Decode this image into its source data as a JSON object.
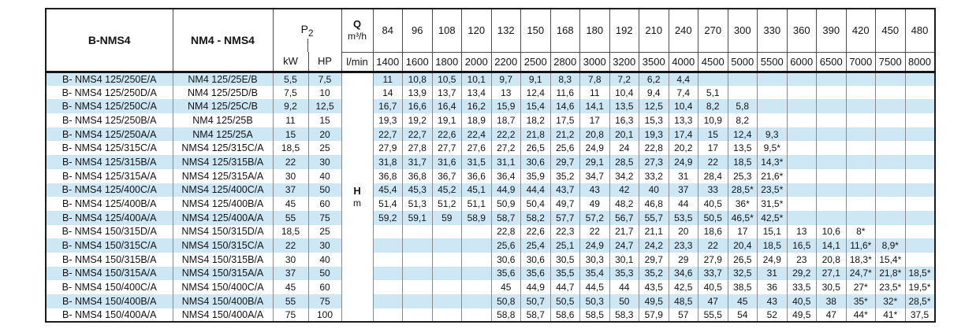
{
  "colors": {
    "stripe_blue": "#cde7f5",
    "border_outer": "#1c1c1c",
    "border_inner": "#8a8a8a"
  },
  "table": {
    "header": {
      "model_b": "B-NMS4",
      "model_nm": "NM4 - NMS4",
      "p2": {
        "base": "P",
        "sub": "2"
      },
      "kw": "kW",
      "hp": "HP",
      "q": {
        "symbol": "Q",
        "unit": "m³/h"
      },
      "lmin": "l/min",
      "flow_m3h": [
        "84",
        "96",
        "108",
        "120",
        "132",
        "150",
        "168",
        "180",
        "192",
        "210",
        "240",
        "270",
        "300",
        "330",
        "360",
        "390",
        "420",
        "450",
        "480"
      ],
      "flow_lmin": [
        "1400",
        "1600",
        "1800",
        "2000",
        "2200",
        "2500",
        "2800",
        "3000",
        "3200",
        "3500",
        "4000",
        "4500",
        "5000",
        "5500",
        "6000",
        "6500",
        "7000",
        "7500",
        "8000"
      ]
    },
    "head_unit": {
      "h": "H",
      "m": "m"
    },
    "rows": [
      {
        "model_b": "B- NMS4 125/250E/A",
        "model_nm": "NM4 125/25E/B",
        "kw": "5,5",
        "hp": "7,5",
        "values": [
          "11",
          "10,8",
          "10,5",
          "10,1",
          "9,7",
          "9,1",
          "8,3",
          "7,8",
          "7,2",
          "6,2",
          "4,4",
          "",
          "",
          "",
          "",
          "",
          "",
          "",
          ""
        ]
      },
      {
        "model_b": "B- NMS4 125/250D/A",
        "model_nm": "NM4 125/25D/B",
        "kw": "7,5",
        "hp": "10",
        "values": [
          "14",
          "13,9",
          "13,7",
          "13,4",
          "13",
          "12,4",
          "11,6",
          "11",
          "10,4",
          "9,4",
          "7,4",
          "5,1",
          "",
          "",
          "",
          "",
          "",
          "",
          ""
        ]
      },
      {
        "model_b": "B- NMS4 125/250C/A",
        "model_nm": "NM4 125/25C/B",
        "kw": "9,2",
        "hp": "12,5",
        "values": [
          "16,7",
          "16,6",
          "16,4",
          "16,2",
          "15,9",
          "15,4",
          "14,6",
          "14,1",
          "13,5",
          "12,5",
          "10,4",
          "8,2",
          "5,8",
          "",
          "",
          "",
          "",
          "",
          ""
        ]
      },
      {
        "model_b": "B- NMS4 125/250B/A",
        "model_nm": "NM4 125/25B",
        "kw": "11",
        "hp": "15",
        "values": [
          "19,3",
          "19,2",
          "19,1",
          "18,9",
          "18,7",
          "18,2",
          "17,5",
          "17",
          "16,3",
          "15,3",
          "13,3",
          "10,9",
          "8,2",
          "",
          "",
          "",
          "",
          "",
          ""
        ]
      },
      {
        "model_b": "B- NMS4 125/250A/A",
        "model_nm": "NM4 125/25A",
        "kw": "15",
        "hp": "20",
        "values": [
          "22,7",
          "22,7",
          "22,6",
          "22,4",
          "22,2",
          "21,8",
          "21,2",
          "20,8",
          "20,1",
          "19,3",
          "17,4",
          "15",
          "12,4",
          "9,3",
          "",
          "",
          "",
          "",
          ""
        ]
      },
      {
        "model_b": "B- NMS4 125/315C/A",
        "model_nm": "NMS4 125/315C/A",
        "kw": "18,5",
        "hp": "25",
        "values": [
          "27,9",
          "27,8",
          "27,7",
          "27,6",
          "27,2",
          "26,5",
          "25,6",
          "24,9",
          "24",
          "22,8",
          "20,2",
          "17",
          "13,5",
          "9,5*",
          "",
          "",
          "",
          "",
          ""
        ]
      },
      {
        "model_b": "B- NMS4 125/315B/A",
        "model_nm": "NMS4 125/315B/A",
        "kw": "22",
        "hp": "30",
        "values": [
          "31,8",
          "31,7",
          "31,6",
          "31,5",
          "31,1",
          "30,6",
          "29,7",
          "29,1",
          "28,5",
          "27,3",
          "24,9",
          "22",
          "18,5",
          "14,3*",
          "",
          "",
          "",
          "",
          ""
        ]
      },
      {
        "model_b": "B- NMS4 125/315A/A",
        "model_nm": "NMS4 125/315A/A",
        "kw": "30",
        "hp": "40",
        "values": [
          "36,8",
          "36,8",
          "36,7",
          "36,6",
          "36,4",
          "35,9",
          "35,2",
          "34,7",
          "34,2",
          "33,2",
          "31",
          "28,4",
          "25,3",
          "21,6*",
          "",
          "",
          "",
          "",
          ""
        ]
      },
      {
        "model_b": "B- NMS4 125/400C/A",
        "model_nm": "NMS4 125/400C/A",
        "kw": "37",
        "hp": "50",
        "values": [
          "45,4",
          "45,3",
          "45,2",
          "45,1",
          "44,9",
          "44,4",
          "43,7",
          "43",
          "42",
          "40",
          "37",
          "33",
          "28,5*",
          "23,5*",
          "",
          "",
          "",
          "",
          ""
        ]
      },
      {
        "model_b": "B- NMS4 125/400B/A",
        "model_nm": "NMS4 125/400B/A",
        "kw": "45",
        "hp": "60",
        "values": [
          "51,4",
          "51,3",
          "51,2",
          "51,1",
          "50,9",
          "50,4",
          "49,7",
          "49",
          "48,2",
          "46,8",
          "44",
          "40,5",
          "36*",
          "31,5*",
          "",
          "",
          "",
          "",
          ""
        ]
      },
      {
        "model_b": "B- NMS4 125/400A/A",
        "model_nm": "NMS4 125/400A/A",
        "kw": "55",
        "hp": "75",
        "values": [
          "59,2",
          "59,1",
          "59",
          "58,9",
          "58,7",
          "58,2",
          "57,7",
          "57,2",
          "56,7",
          "55,7",
          "53,5",
          "50,5",
          "46,5*",
          "42,5*",
          "",
          "",
          "",
          "",
          ""
        ]
      },
      {
        "model_b": "B- NMS4 150/315D/A",
        "model_nm": "NMS4 150/315D/A",
        "kw": "18,5",
        "hp": "25",
        "values": [
          "",
          "",
          "",
          "",
          "22,8",
          "22,6",
          "22,3",
          "22",
          "21,7",
          "21,1",
          "20",
          "18,6",
          "17",
          "15,1",
          "13",
          "10,6",
          "8*",
          "",
          ""
        ]
      },
      {
        "model_b": "B- NMS4 150/315C/A",
        "model_nm": "NMS4 150/315C/A",
        "kw": "22",
        "hp": "30",
        "values": [
          "",
          "",
          "",
          "",
          "25,6",
          "25,4",
          "25,1",
          "24,9",
          "24,7",
          "24,2",
          "23,3",
          "22",
          "20,4",
          "18,5",
          "16,5",
          "14,1",
          "11,6*",
          "8,9*",
          ""
        ]
      },
      {
        "model_b": "B- NMS4 150/315B/A",
        "model_nm": "NMS4 150/315B/A",
        "kw": "30",
        "hp": "40",
        "values": [
          "",
          "",
          "",
          "",
          "30,6",
          "30,6",
          "30,5",
          "30,3",
          "30,1",
          "29,7",
          "29",
          "27,9",
          "26,5",
          "24,9",
          "23",
          "20,8",
          "18,3*",
          "15,4*",
          ""
        ]
      },
      {
        "model_b": "B- NMS4 150/315A/A",
        "model_nm": "NMS4 150/315A/A",
        "kw": "37",
        "hp": "50",
        "values": [
          "",
          "",
          "",
          "",
          "35,6",
          "35,6",
          "35,5",
          "35,4",
          "35,3",
          "35,2",
          "34,6",
          "33,7",
          "32,5",
          "31",
          "29,2",
          "27,1",
          "24,7*",
          "21,8*",
          "18,5*"
        ]
      },
      {
        "model_b": "B- NMS4 150/400C/A",
        "model_nm": "NMS4 150/400C/A",
        "kw": "45",
        "hp": "60",
        "values": [
          "",
          "",
          "",
          "",
          "45",
          "44,9",
          "44,7",
          "44,5",
          "44",
          "43,5",
          "42,5",
          "40,5",
          "38,5",
          "36",
          "33,5",
          "30,5",
          "27*",
          "23,5*",
          "19,5*"
        ]
      },
      {
        "model_b": "B- NMS4 150/400B/A",
        "model_nm": "NMS4 150/400B/A",
        "kw": "55",
        "hp": "75",
        "values": [
          "",
          "",
          "",
          "",
          "50,8",
          "50,7",
          "50,5",
          "50,3",
          "50",
          "49,5",
          "48,5",
          "47",
          "45",
          "43",
          "40,5",
          "38",
          "35*",
          "32*",
          "28,5*"
        ]
      },
      {
        "model_b": "B- NMS4 150/400A/A",
        "model_nm": "NMS4 150/400A/A",
        "kw": "75",
        "hp": "100",
        "values": [
          "",
          "",
          "",
          "",
          "58,8",
          "58,7",
          "58,6",
          "58,5",
          "58,3",
          "57,9",
          "57",
          "55,5",
          "54",
          "52",
          "49,5",
          "47",
          "44*",
          "41*",
          "37,5"
        ]
      }
    ]
  }
}
